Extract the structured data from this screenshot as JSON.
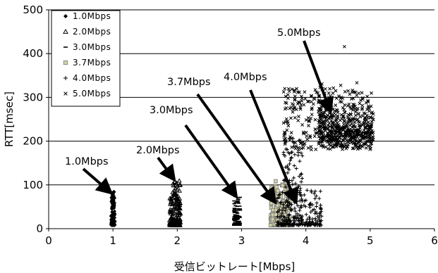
{
  "chart_data": {
    "type": "scatter",
    "xlabel": "受信ビットレート[Mbps]",
    "ylabel": "RTT[msec]",
    "xlim": [
      0,
      6
    ],
    "ylim": [
      0,
      500
    ],
    "xticks": [
      "0",
      "1",
      "2",
      "3",
      "4",
      "5",
      "6"
    ],
    "yticks": [
      "0",
      "100",
      "200",
      "300",
      "400",
      "500"
    ],
    "grid": "horizontal",
    "legend_position": "top-left",
    "series": [
      {
        "name": "1.0Mbps",
        "marker": "diamond",
        "color": "#000000",
        "x_range": [
          0.97,
          1.03
        ],
        "y_range": [
          8,
          85
        ],
        "points": 160
      },
      {
        "name": "2.0Mbps",
        "marker": "triangle",
        "color": "#000000",
        "x_range": [
          1.88,
          2.05
        ],
        "y_range": [
          8,
          110
        ],
        "points": 200
      },
      {
        "name": "3.0Mbps",
        "marker": "dash",
        "color": "#000000",
        "x_range": [
          2.88,
          2.98
        ],
        "y_range": [
          8,
          80
        ],
        "points": 130
      },
      {
        "name": "3.7Mbps",
        "marker": "square",
        "color": "#d6d3a8",
        "x_range": [
          3.45,
          3.75
        ],
        "y_range": [
          8,
          110
        ],
        "points": 260
      },
      {
        "name": "4.0Mbps",
        "marker": "plus",
        "color": "#000000",
        "x_range": [
          3.6,
          4.2
        ],
        "y_range": [
          8,
          210
        ],
        "points": 320
      },
      {
        "name": "5.0Mbps",
        "marker": "x",
        "color": "#000000",
        "x_range": [
          3.65,
          5.05
        ],
        "y_range": [
          150,
          420
        ],
        "points": 700
      }
    ],
    "annotations": [
      {
        "text": "1.0Mbps"
      },
      {
        "text": "2.0Mbps"
      },
      {
        "text": "3.0Mbps"
      },
      {
        "text": "3.7Mbps"
      },
      {
        "text": "4.0Mbps"
      },
      {
        "text": "5.0Mbps"
      }
    ]
  }
}
